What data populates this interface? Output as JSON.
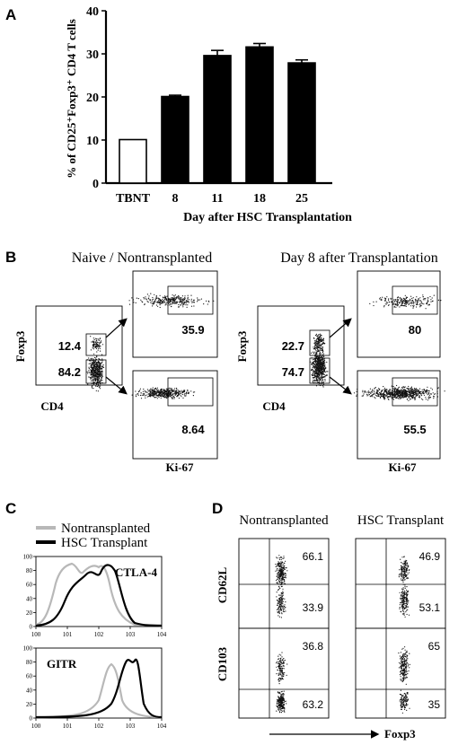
{
  "panel_letters": {
    "a": "A",
    "b": "B",
    "c": "C",
    "d": "D"
  },
  "panel_a": {
    "ylabel": "% of CD25⁺Foxp3⁺ CD4 T cells",
    "xlabel": "Day after HSC Transplantation",
    "yticks": [
      "0",
      "10",
      "20",
      "30",
      "40"
    ]
  },
  "chart_data": [
    {
      "type": "bar",
      "categories": [
        "TBNT",
        "8",
        "11",
        "18",
        "25"
      ],
      "values": [
        10.1,
        20.1,
        29.6,
        31.6,
        27.9
      ],
      "errors": [
        0.0,
        0.3,
        1.2,
        0.8,
        0.7
      ],
      "fill": [
        "white",
        "black",
        "black",
        "black",
        "black"
      ],
      "xlabel": "Day after HSC Transplantation",
      "ylabel": "% of CD25⁺Foxp3⁺ CD4 T cells",
      "ylim": [
        0,
        40
      ],
      "yticks": [
        0,
        10,
        20,
        30,
        40
      ]
    }
  ],
  "panel_b": {
    "left": {
      "title": "Naive / Nontransplanted",
      "main_ylabel": "Foxp3",
      "main_xlabel": "CD4",
      "upper_gate": "12.4",
      "lower_gate": "84.2",
      "top_value": "35.9",
      "bottom_value": "8.64",
      "bottom_xlabel": "Ki-67"
    },
    "right": {
      "title": "Day 8 after Transplantation",
      "main_ylabel": "Foxp3",
      "main_xlabel": "CD4",
      "upper_gate": "22.7",
      "lower_gate": "74.7",
      "top_value": "80",
      "bottom_value": "55.5",
      "bottom_xlabel": "Ki-67"
    }
  },
  "panel_c": {
    "legend": [
      {
        "label": "Nontransplanted",
        "color": "#b8b8b8"
      },
      {
        "label": "HSC Transplant",
        "color": "#000000"
      }
    ],
    "histograms": [
      {
        "marker": "CTLA-4",
        "yticks": [
          "0",
          "20",
          "40",
          "60",
          "80",
          "100"
        ],
        "xticks": [
          "100",
          "101",
          "102",
          "103",
          "104"
        ]
      },
      {
        "marker": "GITR",
        "yticks": [
          "0",
          "20",
          "40",
          "60",
          "80",
          "100"
        ],
        "xticks": [
          "100",
          "101",
          "102",
          "103",
          "104"
        ]
      }
    ]
  },
  "panel_d": {
    "columns": [
      "Nontransplanted",
      "HSC Transplant"
    ],
    "rows": [
      {
        "marker": "CD62L",
        "values": [
          [
            "66.1",
            "33.9"
          ],
          [
            "46.9",
            "53.1"
          ]
        ]
      },
      {
        "marker": "CD103",
        "values": [
          [
            "36.8",
            "63.2"
          ],
          [
            "65",
            "35"
          ]
        ]
      }
    ],
    "xaxis": "Foxp3"
  },
  "colors": {
    "open_bar": "#ffffff",
    "filled_bar": "#000000",
    "nontransplanted": "#b8b8b8",
    "transplant": "#000000"
  }
}
